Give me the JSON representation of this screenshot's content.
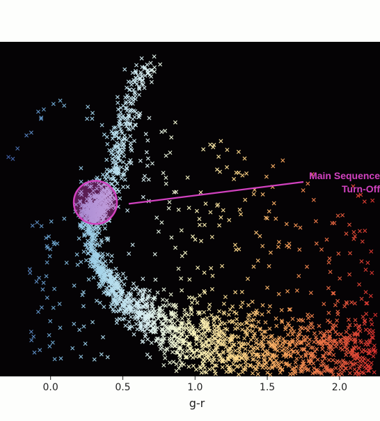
{
  "chart_data": {
    "type": "scatter",
    "title": "",
    "xlabel": "g-r",
    "ylabel": "",
    "xlim": [
      -0.35,
      2.28
    ],
    "ylim": [
      0,
      1
    ],
    "x_ticks": [
      0.0,
      0.5,
      1.0,
      1.5,
      2.0
    ],
    "x_tick_labels": [
      "0.0",
      "0.5",
      "1.0",
      "1.5",
      "2.0"
    ],
    "grid": false,
    "legend": "none",
    "marker": "x",
    "background_color": "#050305",
    "colormap": [
      "#3f5fa8",
      "#6fa9d2",
      "#a6d5ea",
      "#d8eef2",
      "#fbf7c0",
      "#fcd88a",
      "#f6a25a",
      "#ea6a42",
      "#d7302e"
    ],
    "annotation": {
      "lines": [
        "Main Sequence",
        "Turn-Off"
      ],
      "color": "#d242c0",
      "target": {
        "x": 0.31,
        "y": 0.52
      },
      "label_at": {
        "x": 1.75,
        "y": 0.6
      }
    }
  }
}
